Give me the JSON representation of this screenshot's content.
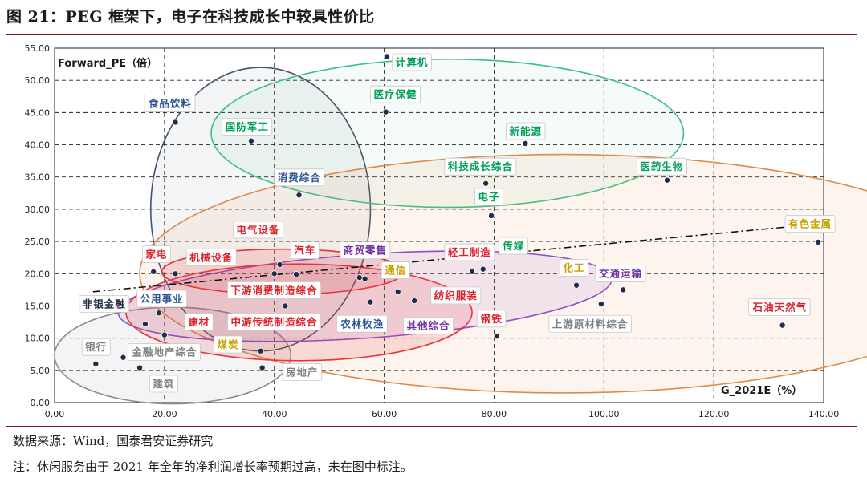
{
  "figure": {
    "title": "图 21：PEG 框架下，电子在科技成长中较具性价比",
    "source": "数据来源：Wind，国泰君安证券研究",
    "note": "注：休闲服务由于 2021 年全年的净利润增长率预期过高，未在图中标注。"
  },
  "colors": {
    "grey": "#7f7f7f",
    "blue": "#2f5597",
    "green": "#00a05a",
    "red": "#e0202a",
    "purple": "#7030a0",
    "gold": "#c9a000",
    "dark": "#1f2a44",
    "border_red": "#7f1416"
  },
  "chart_data": {
    "type": "scatter",
    "ylabel": "Forward_PE（倍）",
    "xlabel": "G_2021E（%）",
    "xlim": [
      0,
      140
    ],
    "ylim": [
      0,
      55
    ],
    "xticks": [
      "0.00",
      "20.00",
      "40.00",
      "60.00",
      "80.00",
      "100.00",
      "120.00",
      "140.00"
    ],
    "yticks": [
      "0.00",
      "5.00",
      "10.00",
      "15.00",
      "20.00",
      "25.00",
      "30.00",
      "35.00",
      "40.00",
      "45.00",
      "50.00",
      "55.00"
    ],
    "grid": true,
    "trendline": {
      "style": "dash-dot",
      "arrow": true,
      "from": [
        7,
        17.2
      ],
      "to": [
        139,
        27.7
      ]
    },
    "points": [
      {
        "name": "计算机",
        "x": 60.5,
        "y": 53.7,
        "color": "green"
      },
      {
        "name": "医疗保健",
        "x": 60.3,
        "y": 45.1,
        "color": "green"
      },
      {
        "name": "新能源",
        "x": 85.7,
        "y": 40.2,
        "color": "green"
      },
      {
        "name": "医药生物",
        "x": 111.5,
        "y": 34.5,
        "color": "green"
      },
      {
        "name": "科技成长综合",
        "x": 78.5,
        "y": 34.0,
        "color": "green"
      },
      {
        "name": "电子",
        "x": 79.5,
        "y": 29.0,
        "color": "green"
      },
      {
        "name": "传媒",
        "x": 78.0,
        "y": 20.7,
        "color": "green"
      },
      {
        "name": "食品饮料",
        "x": 22.0,
        "y": 43.5,
        "color": "blue"
      },
      {
        "name": "国防军工",
        "x": 35.8,
        "y": 40.6,
        "color": "green"
      },
      {
        "name": "消费综合",
        "x": 44.5,
        "y": 32.2,
        "color": "blue"
      },
      {
        "name": "有色金属",
        "x": 139.0,
        "y": 24.9,
        "color": "gold"
      },
      {
        "name": "石油天然气",
        "x": 132.5,
        "y": 12.0,
        "color": "red"
      },
      {
        "name": "交通运输",
        "x": 103.5,
        "y": 17.5,
        "color": "purple"
      },
      {
        "name": "化工",
        "x": 95.0,
        "y": 18.2,
        "color": "gold"
      },
      {
        "name": "上游原材料综合",
        "x": 99.5,
        "y": 15.3,
        "color": "grey"
      },
      {
        "name": "钢铁",
        "x": 80.5,
        "y": 10.3,
        "color": "red"
      },
      {
        "name": "轻工制造",
        "x": 76.0,
        "y": 20.3,
        "color": "red"
      },
      {
        "name": "纺织服装",
        "x": 65.5,
        "y": 15.8,
        "color": "red"
      },
      {
        "name": "其他综合",
        "x": 62.5,
        "y": 17.2,
        "color": "purple"
      },
      {
        "name": "通信",
        "x": 55.5,
        "y": 19.4,
        "color": "gold"
      },
      {
        "name": "商贸零售",
        "x": 56.5,
        "y": 19.2,
        "color": "purple"
      },
      {
        "name": "农林牧渔",
        "x": 57.5,
        "y": 15.6,
        "color": "blue"
      },
      {
        "name": "汽车",
        "x": 44.0,
        "y": 19.9,
        "color": "red"
      },
      {
        "name": "电气设备",
        "x": 41.0,
        "y": 21.4,
        "color": "red"
      },
      {
        "name": "下游消费制造综合",
        "x": 40.0,
        "y": 20.0,
        "color": "red"
      },
      {
        "name": "中游传统制造综合",
        "x": 42.0,
        "y": 15.0,
        "color": "red"
      },
      {
        "name": "机械设备",
        "x": 22.0,
        "y": 20.0,
        "color": "red"
      },
      {
        "name": "家电",
        "x": 18.0,
        "y": 20.3,
        "color": "red"
      },
      {
        "name": "公用事业",
        "x": 19.0,
        "y": 13.9,
        "color": "blue"
      },
      {
        "name": "非银金融",
        "x": 16.5,
        "y": 12.2,
        "color": "grey"
      },
      {
        "name": "建材",
        "x": 20.0,
        "y": 10.5,
        "color": "red"
      },
      {
        "name": "煤炭",
        "x": 37.5,
        "y": 8.0,
        "color": "gold"
      },
      {
        "name": "金融地产综合",
        "x": 12.5,
        "y": 7.0,
        "color": "grey"
      },
      {
        "name": "银行",
        "x": 7.5,
        "y": 6.0,
        "color": "grey"
      },
      {
        "name": "建筑",
        "x": 15.5,
        "y": 5.4,
        "color": "grey"
      },
      {
        "name": "房地产",
        "x": 37.8,
        "y": 5.4,
        "color": "grey"
      }
    ],
    "clusters": [
      {
        "color": "grey",
        "cx": 21.5,
        "cy": 7.3,
        "rx": 21.5,
        "ry": 7.5,
        "rot": 0
      },
      {
        "color": "blue",
        "cx": 37.5,
        "cy": 30.0,
        "rx": 20.0,
        "ry": 22.0,
        "rot": 0
      },
      {
        "color": "green",
        "cx": 71.5,
        "cy": 41.8,
        "rx": 43.0,
        "ry": 11.5,
        "rot": 0
      },
      {
        "color": "orange",
        "cx": 92.5,
        "cy": 20.0,
        "rx": 77.0,
        "ry": 18.5,
        "rot": 0
      },
      {
        "color": "purple",
        "cx": 56.5,
        "cy": 16.5,
        "rx": 45.0,
        "ry": 6.5,
        "rot": -4
      },
      {
        "color": "red",
        "cx": 41.5,
        "cy": 20.3,
        "rx": 22.0,
        "ry": 3.5,
        "rot": 0
      },
      {
        "color": "red",
        "cx": 44.5,
        "cy": 14.0,
        "rx": 31.5,
        "ry": 7.5,
        "rot": 0
      }
    ],
    "labels": [
      {
        "text": "计算机",
        "x": 61.5,
        "y": 52.7,
        "color": "green"
      },
      {
        "text": "医疗保健",
        "x": 57.5,
        "y": 47.7,
        "color": "green"
      },
      {
        "text": "新能源",
        "x": 82.2,
        "y": 42.0,
        "color": "green"
      },
      {
        "text": "医药生物",
        "x": 106.0,
        "y": 36.5,
        "color": "green"
      },
      {
        "text": "科技成长综合",
        "x": 71.0,
        "y": 36.5,
        "color": "green"
      },
      {
        "text": "电子",
        "x": 76.5,
        "y": 31.8,
        "color": "green"
      },
      {
        "text": "传媒",
        "x": 81.0,
        "y": 24.2,
        "color": "green"
      },
      {
        "text": "食品饮料",
        "x": 16.5,
        "y": 46.3,
        "color": "blue"
      },
      {
        "text": "国防军工",
        "x": 30.5,
        "y": 42.7,
        "color": "green"
      },
      {
        "text": "消费综合",
        "x": 40.0,
        "y": 34.8,
        "color": "blue"
      },
      {
        "text": "有色金属",
        "x": 133.0,
        "y": 27.6,
        "color": "gold"
      },
      {
        "text": "石油天然气",
        "x": 126.5,
        "y": 14.7,
        "color": "red"
      },
      {
        "text": "交通运输",
        "x": 98.5,
        "y": 19.9,
        "color": "purple"
      },
      {
        "text": "化工",
        "x": 92.0,
        "y": 20.8,
        "color": "gold"
      },
      {
        "text": "上游原材料综合",
        "x": 90.0,
        "y": 12.1,
        "color": "grey"
      },
      {
        "text": "钢铁",
        "x": 77.0,
        "y": 12.9,
        "color": "red"
      },
      {
        "text": "轻工制造",
        "x": 71.0,
        "y": 23.2,
        "color": "red"
      },
      {
        "text": "纺织服装",
        "x": 68.5,
        "y": 16.5,
        "color": "red"
      },
      {
        "text": "其他综合",
        "x": 63.5,
        "y": 11.8,
        "color": "purple"
      },
      {
        "text": "通信",
        "x": 59.5,
        "y": 20.4,
        "color": "gold"
      },
      {
        "text": "商贸零售",
        "x": 52.0,
        "y": 23.5,
        "color": "purple"
      },
      {
        "text": "农林牧渔",
        "x": 51.5,
        "y": 12.1,
        "color": "blue"
      },
      {
        "text": "汽车",
        "x": 43.0,
        "y": 23.5,
        "color": "red"
      },
      {
        "text": "电气设备",
        "x": 32.5,
        "y": 26.7,
        "color": "red"
      },
      {
        "text": "下游消费制造综合",
        "x": 31.5,
        "y": 17.3,
        "color": "red"
      },
      {
        "text": "中游传统制造综合",
        "x": 31.5,
        "y": 12.4,
        "color": "red"
      },
      {
        "text": "机械设备",
        "x": 24.0,
        "y": 22.4,
        "color": "red"
      },
      {
        "text": "家电",
        "x": 16.0,
        "y": 22.9,
        "color": "red"
      },
      {
        "text": "公用事业",
        "x": 15.0,
        "y": 16.0,
        "color": "blue"
      },
      {
        "text": "非银金融",
        "x": 4.5,
        "y": 15.2,
        "color": "dark"
      },
      {
        "text": "建材",
        "x": 23.7,
        "y": 12.4,
        "color": "red"
      },
      {
        "text": "煤炭",
        "x": 29.0,
        "y": 8.9,
        "color": "gold"
      },
      {
        "text": "金融地产综合",
        "x": 13.5,
        "y": 7.7,
        "color": "grey"
      },
      {
        "text": "银行",
        "x": 5.0,
        "y": 8.5,
        "color": "grey"
      },
      {
        "text": "建筑",
        "x": 17.3,
        "y": 2.8,
        "color": "grey"
      },
      {
        "text": "房地产",
        "x": 41.5,
        "y": 4.6,
        "color": "grey"
      }
    ]
  }
}
